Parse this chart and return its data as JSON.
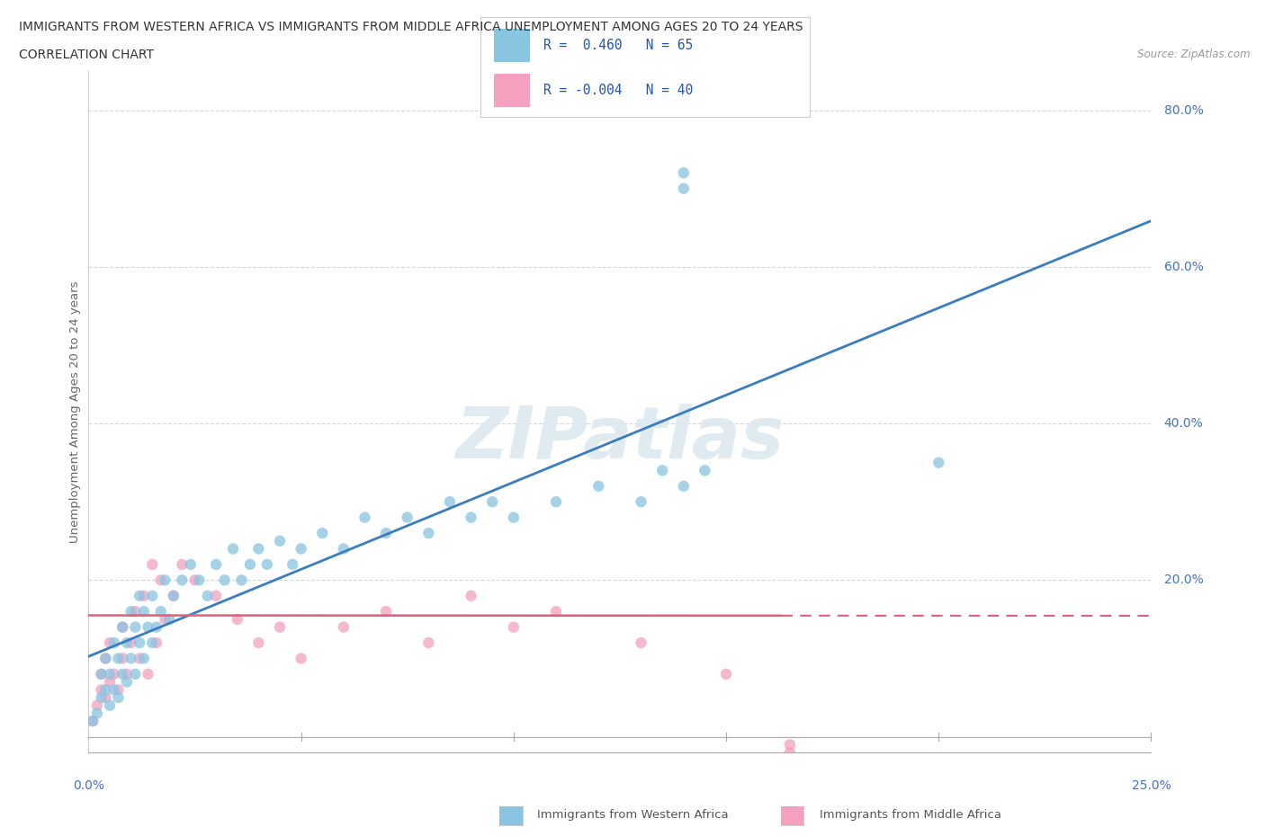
{
  "title_line1": "IMMIGRANTS FROM WESTERN AFRICA VS IMMIGRANTS FROM MIDDLE AFRICA UNEMPLOYMENT AMONG AGES 20 TO 24 YEARS",
  "title_line2": "CORRELATION CHART",
  "source": "Source: ZipAtlas.com",
  "ylabel": "Unemployment Among Ages 20 to 24 years",
  "xlim": [
    0.0,
    0.25
  ],
  "ylim": [
    -0.02,
    0.85
  ],
  "ytick_positions": [
    0.0,
    0.2,
    0.4,
    0.6,
    0.8
  ],
  "blue_R": 0.46,
  "blue_N": 65,
  "pink_R": -0.004,
  "pink_N": 40,
  "blue_color": "#89c4e1",
  "pink_color": "#f4a0be",
  "blue_line_color": "#3a7dbf",
  "pink_line_color": "#e0607a",
  "watermark": "ZIPatlas",
  "grid_color": "#d0d8e8",
  "blue_scatter_x": [
    0.001,
    0.002,
    0.003,
    0.003,
    0.004,
    0.004,
    0.005,
    0.005,
    0.006,
    0.006,
    0.007,
    0.007,
    0.008,
    0.008,
    0.009,
    0.009,
    0.01,
    0.01,
    0.011,
    0.011,
    0.012,
    0.012,
    0.013,
    0.013,
    0.014,
    0.015,
    0.015,
    0.016,
    0.017,
    0.018,
    0.019,
    0.02,
    0.022,
    0.024,
    0.026,
    0.028,
    0.03,
    0.032,
    0.034,
    0.036,
    0.038,
    0.04,
    0.042,
    0.045,
    0.048,
    0.05,
    0.055,
    0.06,
    0.065,
    0.07,
    0.075,
    0.08,
    0.085,
    0.09,
    0.095,
    0.1,
    0.11,
    0.12,
    0.13,
    0.14,
    0.135,
    0.145,
    0.2,
    0.14,
    0.14
  ],
  "blue_scatter_y": [
    0.02,
    0.03,
    0.05,
    0.08,
    0.06,
    0.1,
    0.04,
    0.08,
    0.06,
    0.12,
    0.05,
    0.1,
    0.08,
    0.14,
    0.07,
    0.12,
    0.1,
    0.16,
    0.08,
    0.14,
    0.12,
    0.18,
    0.1,
    0.16,
    0.14,
    0.12,
    0.18,
    0.14,
    0.16,
    0.2,
    0.15,
    0.18,
    0.2,
    0.22,
    0.2,
    0.18,
    0.22,
    0.2,
    0.24,
    0.2,
    0.22,
    0.24,
    0.22,
    0.25,
    0.22,
    0.24,
    0.26,
    0.24,
    0.28,
    0.26,
    0.28,
    0.26,
    0.3,
    0.28,
    0.3,
    0.28,
    0.3,
    0.32,
    0.3,
    0.32,
    0.34,
    0.34,
    0.35,
    0.7,
    0.72
  ],
  "pink_scatter_x": [
    0.001,
    0.002,
    0.003,
    0.003,
    0.004,
    0.004,
    0.005,
    0.005,
    0.006,
    0.007,
    0.008,
    0.008,
    0.009,
    0.01,
    0.011,
    0.012,
    0.013,
    0.014,
    0.015,
    0.016,
    0.017,
    0.018,
    0.02,
    0.022,
    0.025,
    0.03,
    0.035,
    0.04,
    0.045,
    0.05,
    0.06,
    0.07,
    0.08,
    0.09,
    0.1,
    0.11,
    0.13,
    0.15,
    0.165,
    0.165
  ],
  "pink_scatter_y": [
    0.02,
    0.04,
    0.06,
    0.08,
    0.05,
    0.1,
    0.07,
    0.12,
    0.08,
    0.06,
    0.1,
    0.14,
    0.08,
    0.12,
    0.16,
    0.1,
    0.18,
    0.08,
    0.22,
    0.12,
    0.2,
    0.15,
    0.18,
    0.22,
    0.2,
    0.18,
    0.15,
    0.12,
    0.14,
    0.1,
    0.14,
    0.16,
    0.12,
    0.18,
    0.14,
    0.16,
    0.12,
    0.08,
    -0.01,
    -0.02
  ],
  "pink_line_solid_end": 0.163,
  "pink_line_dashed_start": 0.163
}
